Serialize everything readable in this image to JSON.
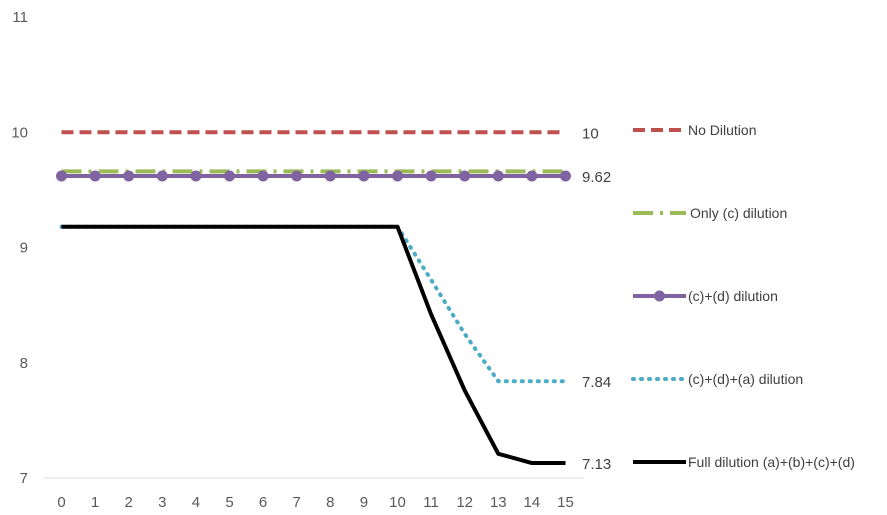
{
  "chart_data": {
    "type": "line",
    "title": "",
    "xlabel": "",
    "ylabel": "",
    "x": [
      0,
      1,
      2,
      3,
      4,
      5,
      6,
      7,
      8,
      9,
      10,
      11,
      12,
      13,
      14,
      15
    ],
    "ylim": [
      7,
      11
    ],
    "y_ticks": [
      "7",
      "8",
      "9",
      "10",
      "11"
    ],
    "grid": false,
    "legend_position": "right",
    "series": [
      {
        "name": "No Dilution",
        "color": "#C0504D",
        "style": "dashed",
        "values": [
          10,
          10,
          10,
          10,
          10,
          10,
          10,
          10,
          10,
          10,
          10,
          10,
          10,
          10,
          10,
          10
        ],
        "end_label": "10"
      },
      {
        "name": "Only (c) dilution",
        "color": "#9BBB59",
        "style": "dash-dot",
        "values": [
          9.66,
          9.66,
          9.66,
          9.66,
          9.66,
          9.66,
          9.66,
          9.66,
          9.66,
          9.66,
          9.66,
          9.66,
          9.66,
          9.66,
          9.66,
          9.66
        ],
        "end_label": ""
      },
      {
        "name": "(c)+(d) dilution",
        "color": "#8064A2",
        "style": "solid-markers",
        "values": [
          9.62,
          9.62,
          9.62,
          9.62,
          9.62,
          9.62,
          9.62,
          9.62,
          9.62,
          9.62,
          9.62,
          9.62,
          9.62,
          9.62,
          9.62,
          9.62
        ],
        "end_label": "9.62"
      },
      {
        "name": "(c)+(d)+(a) dilution",
        "color": "#4BACC6",
        "style": "dotted",
        "values": [
          9.18,
          9.18,
          9.18,
          9.18,
          9.18,
          9.18,
          9.18,
          9.18,
          9.18,
          9.18,
          9.18,
          8.72,
          8.25,
          7.84,
          7.84,
          7.84
        ],
        "end_label": "7.84"
      },
      {
        "name": "Full dilution (a)+(b)+(c)+(d)",
        "color": "#000000",
        "style": "solid",
        "values": [
          9.18,
          9.18,
          9.18,
          9.18,
          9.18,
          9.18,
          9.18,
          9.18,
          9.18,
          9.18,
          9.18,
          8.42,
          7.76,
          7.21,
          7.13,
          7.13
        ],
        "end_label": "7.13"
      }
    ]
  }
}
